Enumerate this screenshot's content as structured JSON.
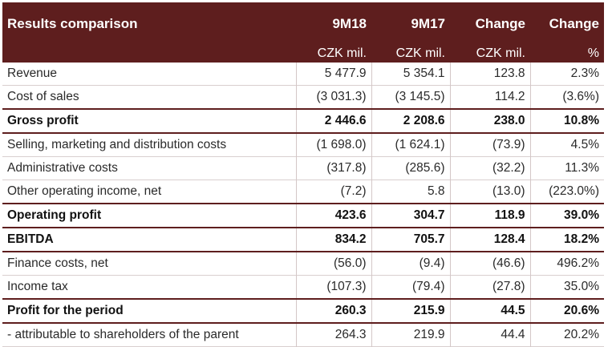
{
  "table": {
    "headers": [
      "Results comparison",
      "9M18",
      "9M17",
      "Change",
      "Change"
    ],
    "units": [
      "",
      "CZK mil.",
      "CZK mil.",
      "CZK mil.",
      "%"
    ],
    "rows": [
      {
        "label": "Revenue",
        "cells": [
          "5 477.9",
          "5 354.1",
          "123.8",
          "2.3%"
        ],
        "bold": false
      },
      {
        "label": "Cost of sales",
        "cells": [
          "(3 031.3)",
          "(3 145.5)",
          "114.2",
          "(3.6%)"
        ],
        "bold": false
      },
      {
        "label": "Gross profit",
        "cells": [
          "2 446.6",
          "2 208.6",
          "238.0",
          "10.8%"
        ],
        "bold": true
      },
      {
        "label": "Selling, marketing and distribution costs",
        "cells": [
          "(1 698.0)",
          "(1 624.1)",
          "(73.9)",
          "4.5%"
        ],
        "bold": false
      },
      {
        "label": "Administrative costs",
        "cells": [
          "(317.8)",
          "(285.6)",
          "(32.2)",
          "11.3%"
        ],
        "bold": false
      },
      {
        "label": "Other operating income, net",
        "cells": [
          "(7.2)",
          "5.8",
          "(13.0)",
          "(223.0%)"
        ],
        "bold": false
      },
      {
        "label": "Operating profit",
        "cells": [
          "423.6",
          "304.7",
          "118.9",
          "39.0%"
        ],
        "bold": true
      },
      {
        "label": "EBITDA",
        "cells": [
          "834.2",
          "705.7",
          "128.4",
          "18.2%"
        ],
        "bold": true
      },
      {
        "label": "Finance costs, net",
        "cells": [
          "(56.0)",
          "(9.4)",
          "(46.6)",
          "496.2%"
        ],
        "bold": false
      },
      {
        "label": "Income tax",
        "cells": [
          "(107.3)",
          "(79.4)",
          "(27.8)",
          "35.0%"
        ],
        "bold": false
      },
      {
        "label": "Profit for the period",
        "cells": [
          "260.3",
          "215.9",
          "44.5",
          "20.6%"
        ],
        "bold": true
      },
      {
        "label": "- attributable to shareholders of the parent",
        "cells": [
          "264.3",
          "219.9",
          "44.4",
          "20.2%"
        ],
        "bold": false
      }
    ]
  },
  "colors": {
    "header_bg": "#5e1e1e",
    "header_text": "#ffffff",
    "rule": "#5e1e1e"
  }
}
